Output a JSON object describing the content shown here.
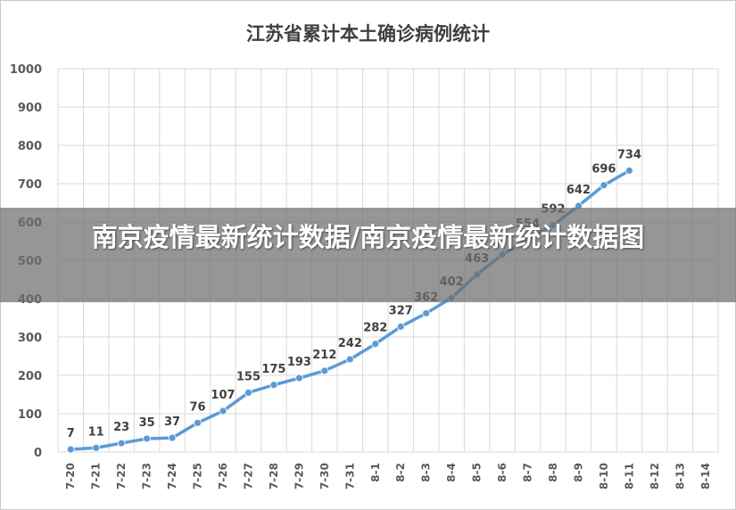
{
  "chart_data": {
    "type": "line",
    "title": "江苏省累计本土确诊病例统计",
    "xlabel": "",
    "ylabel": "",
    "ylim": [
      0,
      1000
    ],
    "yticks": [
      0,
      100,
      200,
      300,
      400,
      500,
      600,
      700,
      800,
      900,
      1000
    ],
    "grid": true,
    "legend": "none",
    "categories": [
      "7-20",
      "7-21",
      "7-22",
      "7-23",
      "7-24",
      "7-25",
      "7-26",
      "7-27",
      "7-28",
      "7-29",
      "7-30",
      "7-31",
      "8-1",
      "8-2",
      "8-3",
      "8-4",
      "8-5",
      "8-6",
      "8-7",
      "8-8",
      "8-9",
      "8-10",
      "8-11",
      "8-12",
      "8-13",
      "8-14"
    ],
    "series": [
      {
        "values": [
          7,
          11,
          23,
          35,
          37,
          76,
          107,
          155,
          175,
          193,
          212,
          242,
          282,
          327,
          362,
          402,
          463,
          515,
          554,
          592,
          642,
          696,
          734,
          null,
          null,
          null
        ],
        "color": "#5b9bd5"
      }
    ],
    "data_labels": [
      "7",
      "11",
      "23",
      "35",
      "37",
      "76",
      "107",
      "155",
      "175",
      "193",
      "212",
      "242",
      "282",
      "327",
      "362",
      "402",
      "463",
      "",
      "554",
      "592",
      "642",
      "696",
      "734",
      "",
      "",
      ""
    ]
  },
  "overlay": {
    "banner_text": "南京疫情最新统计数据/南京疫情最新统计数据图"
  }
}
